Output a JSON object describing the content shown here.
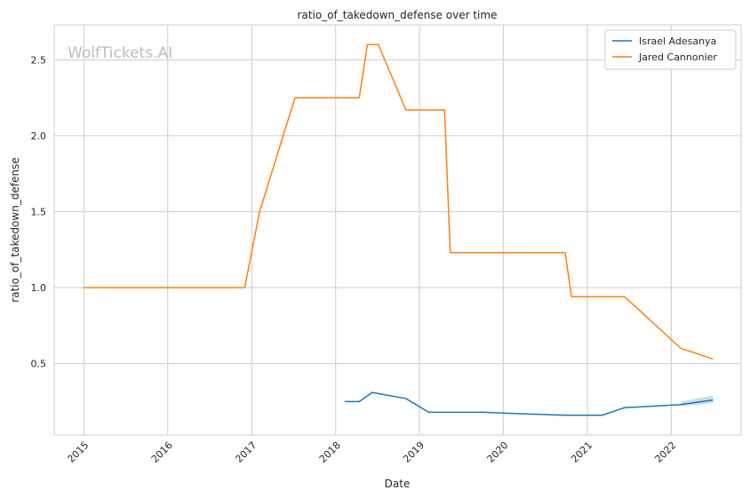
{
  "watermark": "WolfTickets.AI",
  "chart_data": {
    "type": "line",
    "title": "ratio_of_takedown_defense over time",
    "xlabel": "Date",
    "ylabel": "ratio_of_takedown_defense",
    "x_ticks": [
      "2015",
      "2016",
      "2017",
      "2018",
      "2019",
      "2020",
      "2021",
      "2022"
    ],
    "y_ticks": [
      "0.5",
      "1.0",
      "1.5",
      "2.0",
      "2.5"
    ],
    "xlim": [
      "2014-08-25",
      "2022-11-01"
    ],
    "ylim": [
      0.03,
      2.73
    ],
    "grid": true,
    "legend_position": "top-right",
    "series": [
      {
        "name": "Israel Adesanya",
        "color": "#1f77b4",
        "points": [
          [
            "2018-02-10",
            0.25
          ],
          [
            "2018-04-14",
            0.25
          ],
          [
            "2018-06-09",
            0.31
          ],
          [
            "2018-11-03",
            0.27
          ],
          [
            "2019-02-10",
            0.18
          ],
          [
            "2019-10-06",
            0.18
          ],
          [
            "2020-03-07",
            0.17
          ],
          [
            "2020-09-26",
            0.16
          ],
          [
            "2021-03-06",
            0.16
          ],
          [
            "2021-06-12",
            0.21
          ],
          [
            "2022-02-12",
            0.23
          ],
          [
            "2022-07-02",
            0.26
          ]
        ],
        "band": [
          [
            "2022-02-12",
            0.22,
            0.25
          ],
          [
            "2022-07-02",
            0.24,
            0.29
          ]
        ]
      },
      {
        "name": "Jared Cannonier",
        "color": "#ff7f0e",
        "points": [
          [
            "2015-01-01",
            1.0
          ],
          [
            "2016-12-01",
            1.0
          ],
          [
            "2017-02-04",
            1.5
          ],
          [
            "2017-07-08",
            2.25
          ],
          [
            "2018-04-14",
            2.25
          ],
          [
            "2018-05-19",
            2.6
          ],
          [
            "2018-07-06",
            2.6
          ],
          [
            "2018-11-03",
            2.17
          ],
          [
            "2019-04-20",
            2.17
          ],
          [
            "2019-05-15",
            1.23
          ],
          [
            "2020-09-26",
            1.23
          ],
          [
            "2020-10-24",
            0.94
          ],
          [
            "2021-06-12",
            0.94
          ],
          [
            "2022-02-12",
            0.6
          ],
          [
            "2022-07-02",
            0.53
          ]
        ]
      }
    ]
  }
}
